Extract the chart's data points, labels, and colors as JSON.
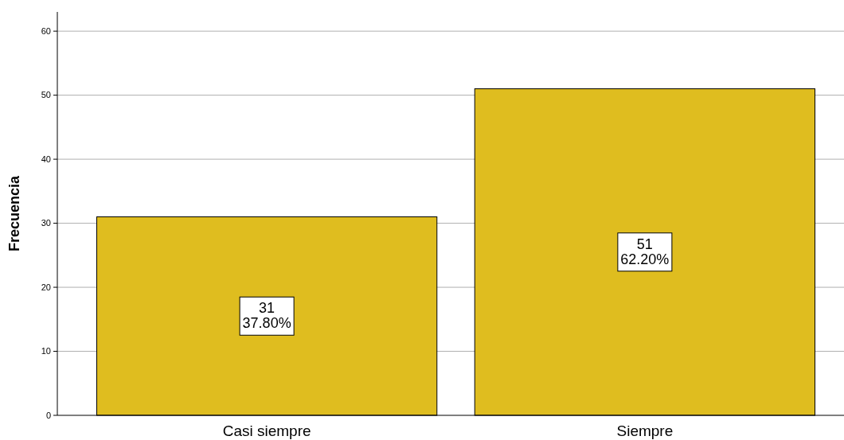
{
  "chart_data": {
    "type": "bar",
    "ylabel": "Frecuencia",
    "categories": [
      "Casi siempre",
      "Siempre"
    ],
    "values": [
      31,
      51
    ],
    "color": "#dfbd1f",
    "value_labels": [
      "31\n37.80%",
      "51\n62.20%"
    ],
    "ylim": [
      0,
      63
    ],
    "yticks": [
      0,
      10,
      20,
      30,
      40,
      50,
      60
    ],
    "grid": "y"
  }
}
